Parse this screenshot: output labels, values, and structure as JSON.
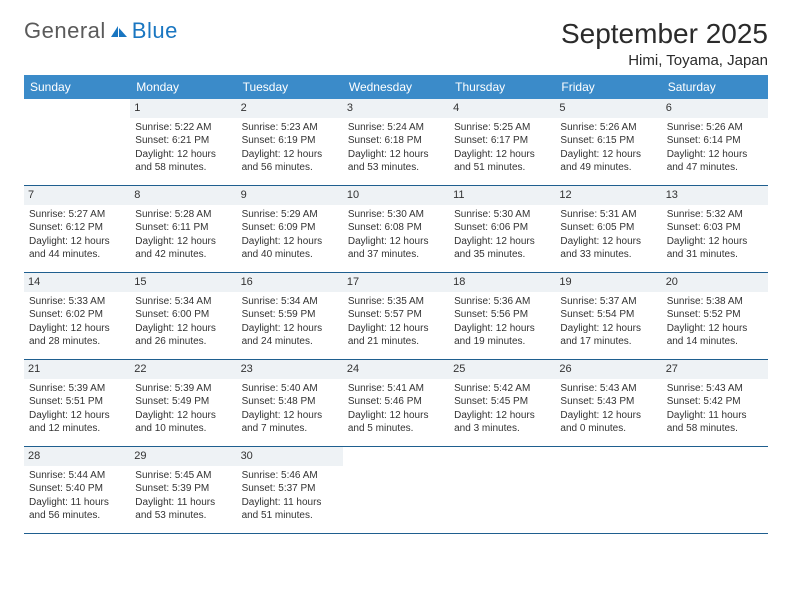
{
  "brand": {
    "word1": "General",
    "word2": "Blue"
  },
  "title": "September 2025",
  "location": "Himi, Toyama, Japan",
  "colors": {
    "header_bg": "#3b8bc9",
    "header_text": "#ffffff",
    "row_border": "#1f5f8f",
    "daynum_bg": "#eef2f5",
    "text": "#333333",
    "logo_gray": "#5a5a5a",
    "logo_blue": "#1976c1"
  },
  "weekdays": [
    "Sunday",
    "Monday",
    "Tuesday",
    "Wednesday",
    "Thursday",
    "Friday",
    "Saturday"
  ],
  "weeks": [
    [
      {
        "day": "",
        "sunrise": "",
        "sunset": "",
        "daylight": ""
      },
      {
        "day": "1",
        "sunrise": "Sunrise: 5:22 AM",
        "sunset": "Sunset: 6:21 PM",
        "daylight": "Daylight: 12 hours and 58 minutes."
      },
      {
        "day": "2",
        "sunrise": "Sunrise: 5:23 AM",
        "sunset": "Sunset: 6:19 PM",
        "daylight": "Daylight: 12 hours and 56 minutes."
      },
      {
        "day": "3",
        "sunrise": "Sunrise: 5:24 AM",
        "sunset": "Sunset: 6:18 PM",
        "daylight": "Daylight: 12 hours and 53 minutes."
      },
      {
        "day": "4",
        "sunrise": "Sunrise: 5:25 AM",
        "sunset": "Sunset: 6:17 PM",
        "daylight": "Daylight: 12 hours and 51 minutes."
      },
      {
        "day": "5",
        "sunrise": "Sunrise: 5:26 AM",
        "sunset": "Sunset: 6:15 PM",
        "daylight": "Daylight: 12 hours and 49 minutes."
      },
      {
        "day": "6",
        "sunrise": "Sunrise: 5:26 AM",
        "sunset": "Sunset: 6:14 PM",
        "daylight": "Daylight: 12 hours and 47 minutes."
      }
    ],
    [
      {
        "day": "7",
        "sunrise": "Sunrise: 5:27 AM",
        "sunset": "Sunset: 6:12 PM",
        "daylight": "Daylight: 12 hours and 44 minutes."
      },
      {
        "day": "8",
        "sunrise": "Sunrise: 5:28 AM",
        "sunset": "Sunset: 6:11 PM",
        "daylight": "Daylight: 12 hours and 42 minutes."
      },
      {
        "day": "9",
        "sunrise": "Sunrise: 5:29 AM",
        "sunset": "Sunset: 6:09 PM",
        "daylight": "Daylight: 12 hours and 40 minutes."
      },
      {
        "day": "10",
        "sunrise": "Sunrise: 5:30 AM",
        "sunset": "Sunset: 6:08 PM",
        "daylight": "Daylight: 12 hours and 37 minutes."
      },
      {
        "day": "11",
        "sunrise": "Sunrise: 5:30 AM",
        "sunset": "Sunset: 6:06 PM",
        "daylight": "Daylight: 12 hours and 35 minutes."
      },
      {
        "day": "12",
        "sunrise": "Sunrise: 5:31 AM",
        "sunset": "Sunset: 6:05 PM",
        "daylight": "Daylight: 12 hours and 33 minutes."
      },
      {
        "day": "13",
        "sunrise": "Sunrise: 5:32 AM",
        "sunset": "Sunset: 6:03 PM",
        "daylight": "Daylight: 12 hours and 31 minutes."
      }
    ],
    [
      {
        "day": "14",
        "sunrise": "Sunrise: 5:33 AM",
        "sunset": "Sunset: 6:02 PM",
        "daylight": "Daylight: 12 hours and 28 minutes."
      },
      {
        "day": "15",
        "sunrise": "Sunrise: 5:34 AM",
        "sunset": "Sunset: 6:00 PM",
        "daylight": "Daylight: 12 hours and 26 minutes."
      },
      {
        "day": "16",
        "sunrise": "Sunrise: 5:34 AM",
        "sunset": "Sunset: 5:59 PM",
        "daylight": "Daylight: 12 hours and 24 minutes."
      },
      {
        "day": "17",
        "sunrise": "Sunrise: 5:35 AM",
        "sunset": "Sunset: 5:57 PM",
        "daylight": "Daylight: 12 hours and 21 minutes."
      },
      {
        "day": "18",
        "sunrise": "Sunrise: 5:36 AM",
        "sunset": "Sunset: 5:56 PM",
        "daylight": "Daylight: 12 hours and 19 minutes."
      },
      {
        "day": "19",
        "sunrise": "Sunrise: 5:37 AM",
        "sunset": "Sunset: 5:54 PM",
        "daylight": "Daylight: 12 hours and 17 minutes."
      },
      {
        "day": "20",
        "sunrise": "Sunrise: 5:38 AM",
        "sunset": "Sunset: 5:52 PM",
        "daylight": "Daylight: 12 hours and 14 minutes."
      }
    ],
    [
      {
        "day": "21",
        "sunrise": "Sunrise: 5:39 AM",
        "sunset": "Sunset: 5:51 PM",
        "daylight": "Daylight: 12 hours and 12 minutes."
      },
      {
        "day": "22",
        "sunrise": "Sunrise: 5:39 AM",
        "sunset": "Sunset: 5:49 PM",
        "daylight": "Daylight: 12 hours and 10 minutes."
      },
      {
        "day": "23",
        "sunrise": "Sunrise: 5:40 AM",
        "sunset": "Sunset: 5:48 PM",
        "daylight": "Daylight: 12 hours and 7 minutes."
      },
      {
        "day": "24",
        "sunrise": "Sunrise: 5:41 AM",
        "sunset": "Sunset: 5:46 PM",
        "daylight": "Daylight: 12 hours and 5 minutes."
      },
      {
        "day": "25",
        "sunrise": "Sunrise: 5:42 AM",
        "sunset": "Sunset: 5:45 PM",
        "daylight": "Daylight: 12 hours and 3 minutes."
      },
      {
        "day": "26",
        "sunrise": "Sunrise: 5:43 AM",
        "sunset": "Sunset: 5:43 PM",
        "daylight": "Daylight: 12 hours and 0 minutes."
      },
      {
        "day": "27",
        "sunrise": "Sunrise: 5:43 AM",
        "sunset": "Sunset: 5:42 PM",
        "daylight": "Daylight: 11 hours and 58 minutes."
      }
    ],
    [
      {
        "day": "28",
        "sunrise": "Sunrise: 5:44 AM",
        "sunset": "Sunset: 5:40 PM",
        "daylight": "Daylight: 11 hours and 56 minutes."
      },
      {
        "day": "29",
        "sunrise": "Sunrise: 5:45 AM",
        "sunset": "Sunset: 5:39 PM",
        "daylight": "Daylight: 11 hours and 53 minutes."
      },
      {
        "day": "30",
        "sunrise": "Sunrise: 5:46 AM",
        "sunset": "Sunset: 5:37 PM",
        "daylight": "Daylight: 11 hours and 51 minutes."
      },
      {
        "day": "",
        "sunrise": "",
        "sunset": "",
        "daylight": ""
      },
      {
        "day": "",
        "sunrise": "",
        "sunset": "",
        "daylight": ""
      },
      {
        "day": "",
        "sunrise": "",
        "sunset": "",
        "daylight": ""
      },
      {
        "day": "",
        "sunrise": "",
        "sunset": "",
        "daylight": ""
      }
    ]
  ]
}
